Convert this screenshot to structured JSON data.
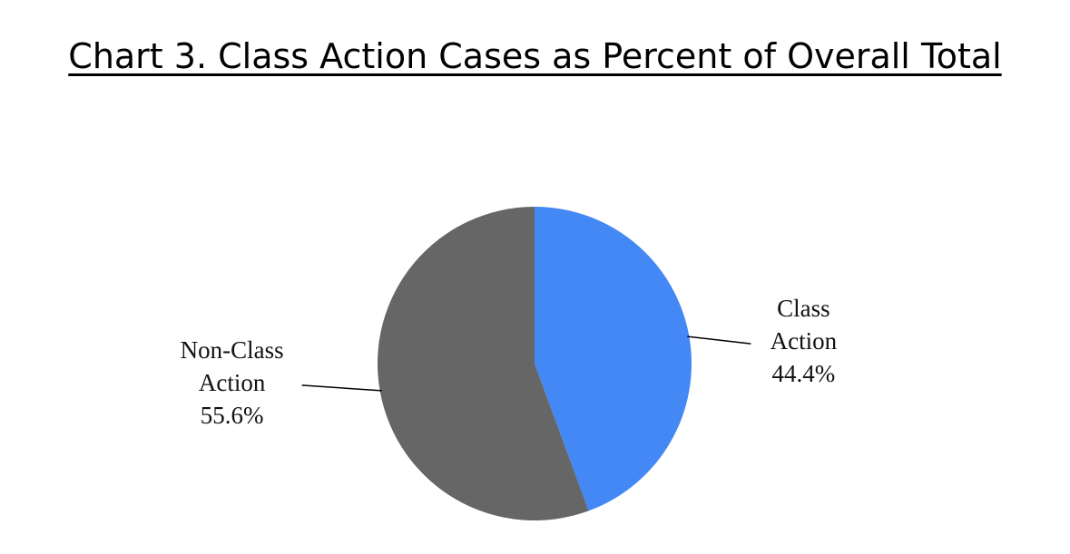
{
  "chart_data": {
    "type": "pie",
    "title": "Chart 3. Class Action Cases as Percent of Overall Total",
    "categories": [
      "Class Action",
      "Non-Class Action"
    ],
    "values": [
      44.4,
      55.6
    ],
    "value_labels": [
      "44.4%",
      "55.6%"
    ],
    "colors": [
      "#4388f4",
      "#666666"
    ]
  }
}
